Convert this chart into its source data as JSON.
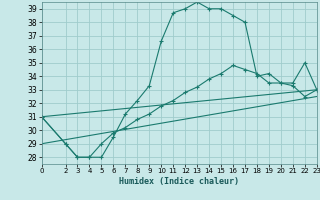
{
  "title": "",
  "xlabel": "Humidex (Indice chaleur)",
  "bg_color": "#c8e8e8",
  "grid_color": "#a0cccc",
  "line_color": "#1a7a6e",
  "xlim": [
    0,
    23
  ],
  "ylim": [
    27.5,
    39.5
  ],
  "xticks": [
    0,
    2,
    3,
    4,
    5,
    6,
    7,
    8,
    9,
    10,
    11,
    12,
    13,
    14,
    15,
    16,
    17,
    18,
    19,
    20,
    21,
    22,
    23
  ],
  "yticks": [
    28,
    29,
    30,
    31,
    32,
    33,
    34,
    35,
    36,
    37,
    38,
    39
  ],
  "series": [
    {
      "x": [
        0,
        2,
        3,
        4,
        5,
        6,
        7,
        8,
        9,
        10,
        11,
        12,
        13,
        14,
        15,
        16,
        17,
        18,
        19,
        20,
        21,
        22,
        23
      ],
      "y": [
        31.0,
        29.0,
        28.0,
        28.0,
        28.0,
        29.5,
        31.2,
        32.2,
        33.3,
        36.6,
        38.7,
        39.0,
        39.5,
        39.0,
        39.0,
        38.5,
        38.0,
        34.0,
        34.2,
        33.5,
        33.5,
        35.0,
        33.0
      ],
      "marker": true
    },
    {
      "x": [
        0,
        2,
        3,
        4,
        5,
        6,
        7,
        8,
        9,
        10,
        11,
        12,
        13,
        14,
        15,
        16,
        17,
        18,
        19,
        20,
        21,
        22,
        23
      ],
      "y": [
        31.0,
        29.0,
        28.0,
        28.0,
        29.0,
        29.8,
        30.2,
        30.8,
        31.2,
        31.8,
        32.2,
        32.8,
        33.2,
        33.8,
        34.2,
        34.8,
        34.5,
        34.2,
        33.5,
        33.5,
        33.3,
        32.5,
        33.0
      ],
      "marker": true
    },
    {
      "x": [
        0,
        23
      ],
      "y": [
        31.0,
        33.0
      ],
      "marker": false
    },
    {
      "x": [
        0,
        23
      ],
      "y": [
        29.0,
        32.5
      ],
      "marker": false
    }
  ]
}
